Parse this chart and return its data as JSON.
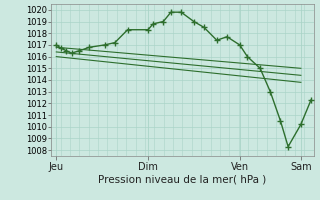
{
  "background_color": "#cce8e0",
  "grid_color": "#aad4c8",
  "line_color": "#2d6e2d",
  "marker_color": "#2d6e2d",
  "xlabel": "Pression niveau de la mer( hPa )",
  "ylim": [
    1007.5,
    1020.5
  ],
  "ytick_min": 1008,
  "ytick_max": 1020,
  "day_labels": [
    "Jeu",
    "Dim",
    "Ven",
    "Sam"
  ],
  "day_positions": [
    0.0,
    36.0,
    72.0,
    96.0
  ],
  "xlim": [
    -2,
    101
  ],
  "series1_x": [
    0,
    2,
    4,
    6,
    9,
    13,
    19,
    23,
    28,
    36,
    38,
    42,
    45,
    49,
    54,
    58,
    63,
    67,
    72,
    75,
    80,
    84,
    88,
    91,
    96,
    100
  ],
  "series1_y": [
    1017.0,
    1016.7,
    1016.5,
    1016.3,
    1016.5,
    1016.8,
    1017.0,
    1017.2,
    1018.3,
    1018.3,
    1018.8,
    1019.0,
    1019.8,
    1019.8,
    1019.0,
    1018.5,
    1017.4,
    1017.7,
    1017.0,
    1016.0,
    1015.0,
    1013.0,
    1010.5,
    1008.3,
    1010.2,
    1012.3
  ],
  "series2_x": [
    0,
    96
  ],
  "series2_y": [
    1016.8,
    1015.0
  ],
  "series3_x": [
    0,
    96
  ],
  "series3_y": [
    1016.4,
    1014.4
  ],
  "series4_x": [
    0,
    96
  ],
  "series4_y": [
    1016.0,
    1013.8
  ],
  "xlabel_fontsize": 7.5,
  "xtick_fontsize": 7,
  "ytick_fontsize": 6
}
